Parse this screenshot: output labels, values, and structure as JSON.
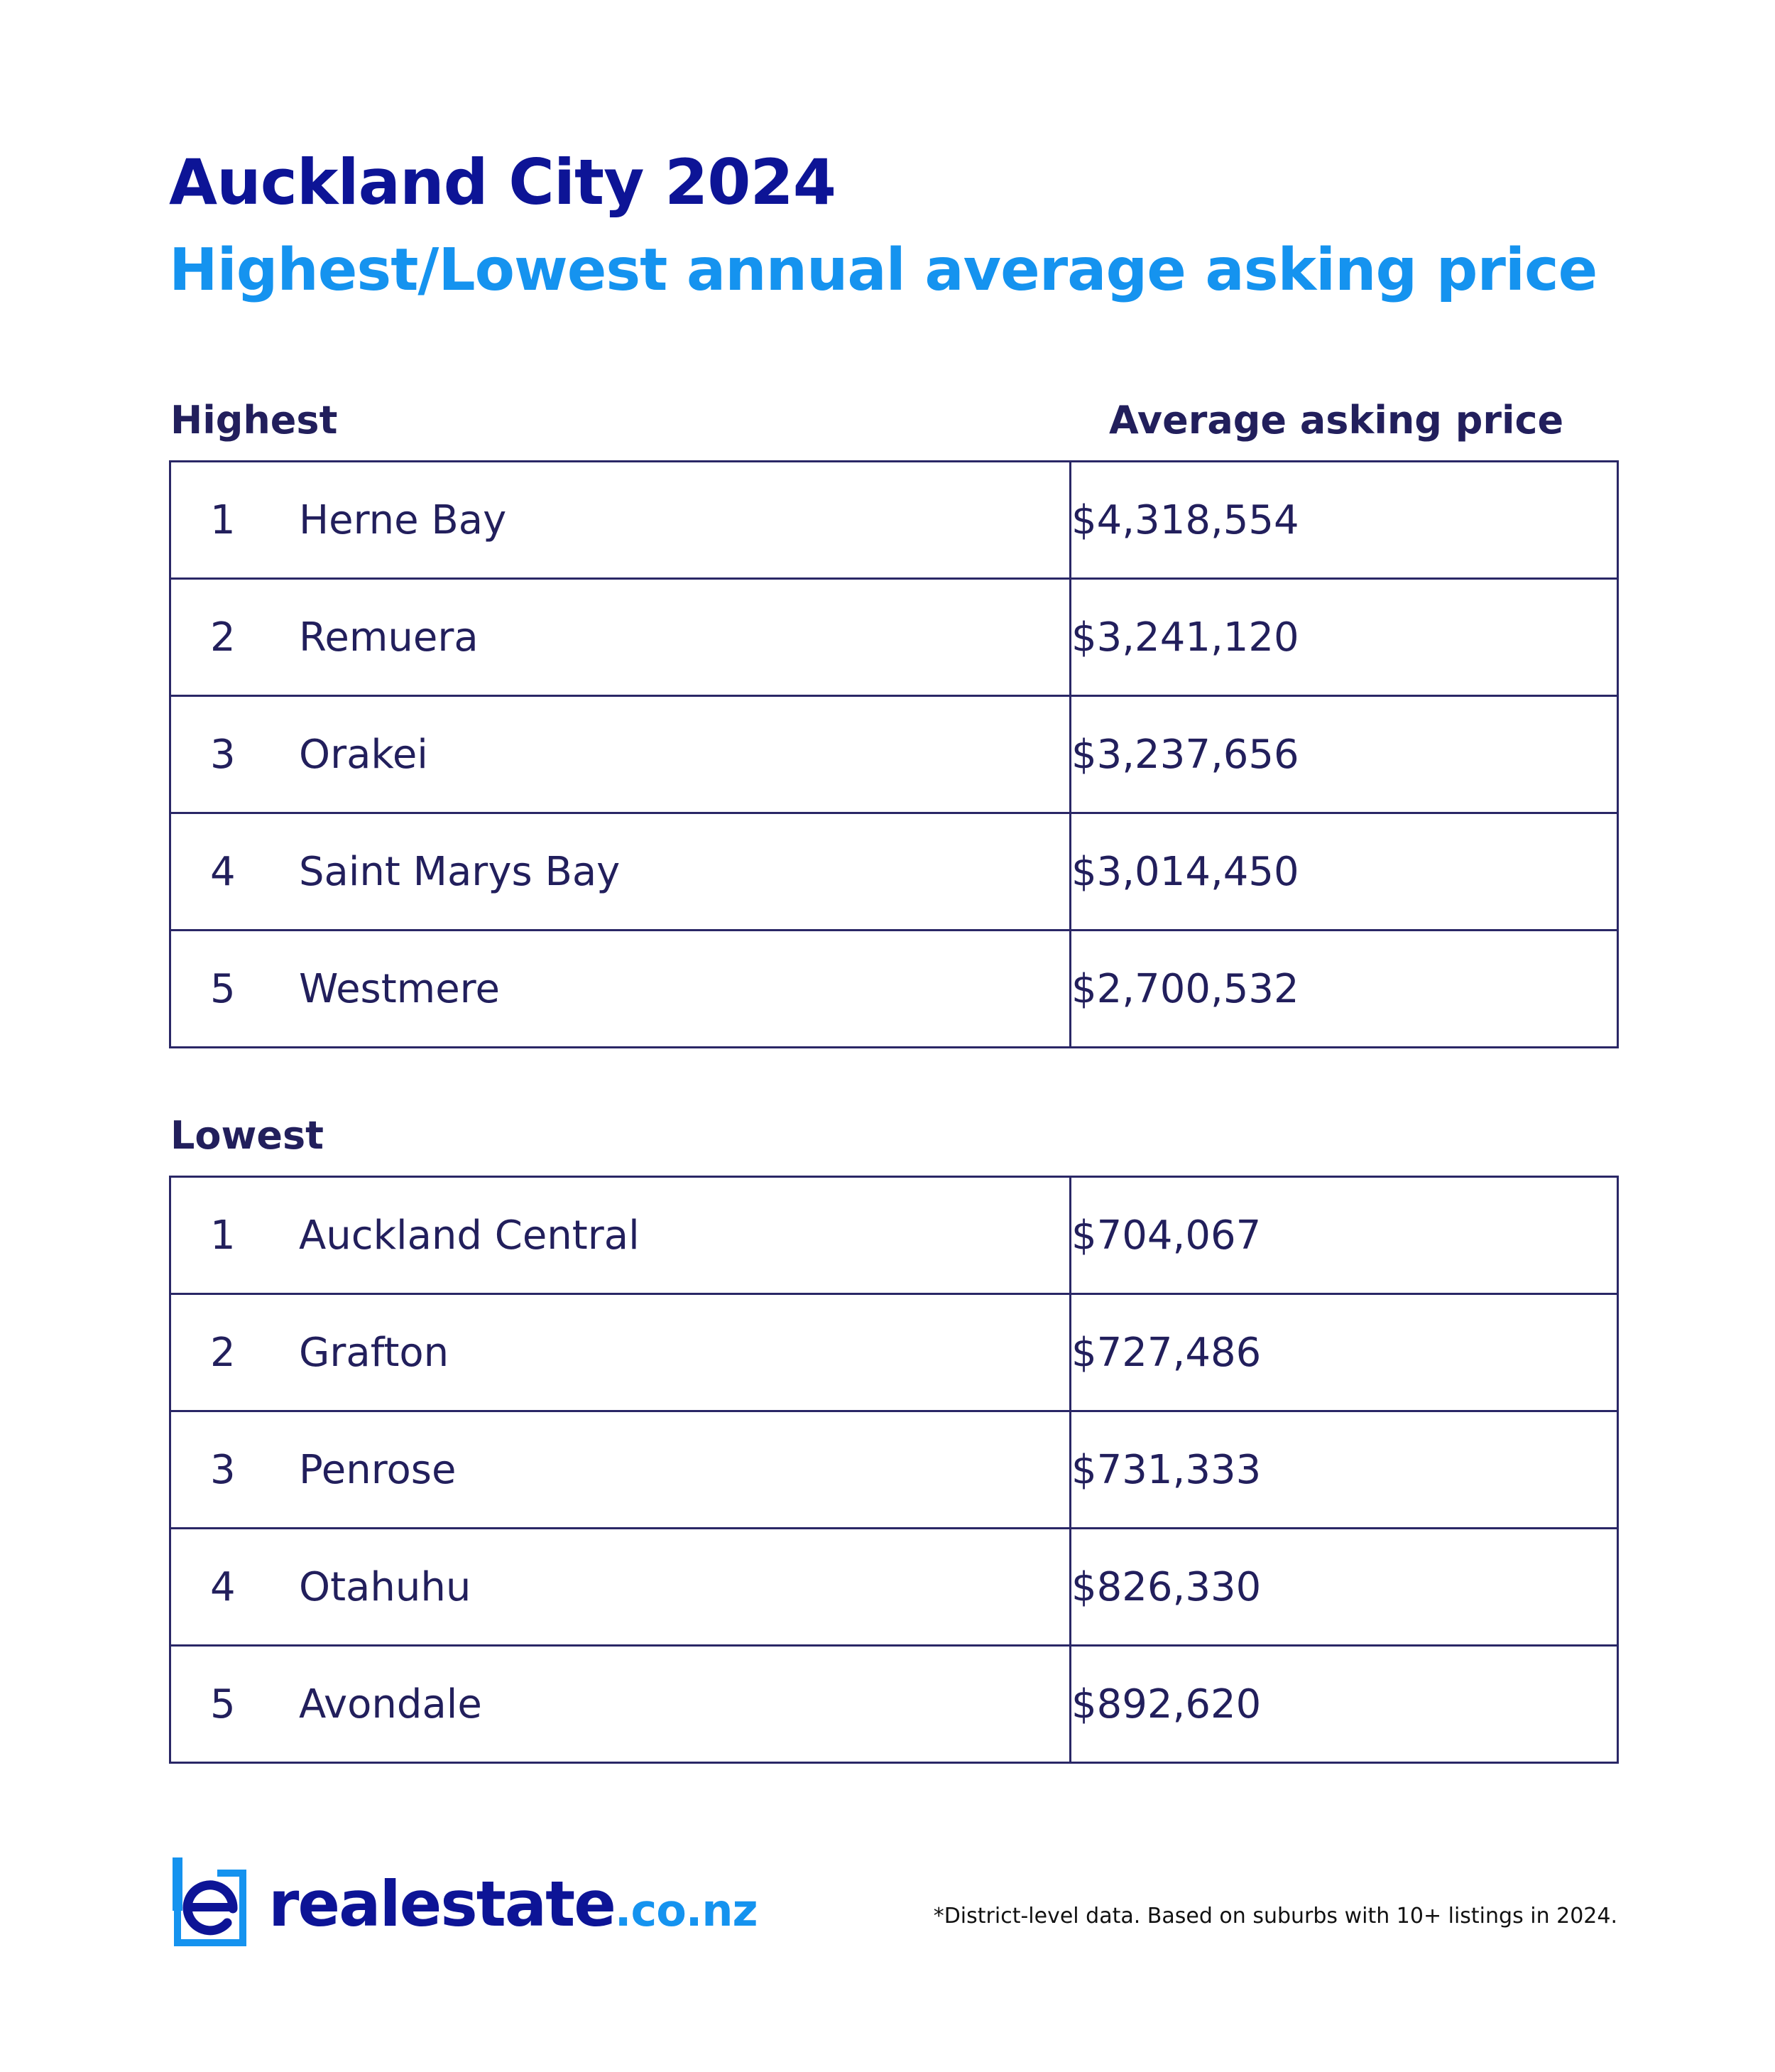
{
  "header": {
    "title": "Auckland City 2024",
    "subtitle": "Highest/Lowest annual average asking price"
  },
  "highest": {
    "label": "Highest",
    "column_label": "Average asking price",
    "rows": [
      {
        "rank": "1",
        "suburb": "Herne Bay",
        "price": "$4,318,554"
      },
      {
        "rank": "2",
        "suburb": "Remuera",
        "price": "$3,241,120"
      },
      {
        "rank": "3",
        "suburb": "Orakei",
        "price": "$3,237,656"
      },
      {
        "rank": "4",
        "suburb": "Saint Marys Bay",
        "price": "$3,014,450"
      },
      {
        "rank": "5",
        "suburb": "Westmere",
        "price": "$2,700,532"
      }
    ]
  },
  "lowest": {
    "label": "Lowest",
    "rows": [
      {
        "rank": "1",
        "suburb": "Auckland Central",
        "price": "$704,067"
      },
      {
        "rank": "2",
        "suburb": "Grafton",
        "price": "$727,486"
      },
      {
        "rank": "3",
        "suburb": "Penrose",
        "price": "$731,333"
      },
      {
        "rank": "4",
        "suburb": "Otahuhu",
        "price": "$826,330"
      },
      {
        "rank": "5",
        "suburb": "Avondale",
        "price": "$892,620"
      }
    ]
  },
  "footer": {
    "logo_name": "realestate",
    "logo_tld": ".co.nz",
    "footnote": "*District-level data. Based on suburbs with 10+ listings in 2024."
  },
  "colors": {
    "title": "#0d1496",
    "subtitle": "#1593ef",
    "text": "#221f5c",
    "border": "#2a2766"
  },
  "chart_data": {
    "type": "table",
    "title": "Auckland City 2024",
    "subtitle": "Highest/Lowest annual average asking price",
    "columns": [
      "",
      "Average asking price"
    ],
    "groups": [
      {
        "name": "Highest",
        "rows": [
          {
            "rank": 1,
            "suburb": "Herne Bay",
            "value": 4318554
          },
          {
            "rank": 2,
            "suburb": "Remuera",
            "value": 3241120
          },
          {
            "rank": 3,
            "suburb": "Orakei",
            "value": 3237656
          },
          {
            "rank": 4,
            "suburb": "Saint Marys Bay",
            "value": 3014450
          },
          {
            "rank": 5,
            "suburb": "Westmere",
            "value": 2700532
          }
        ]
      },
      {
        "name": "Lowest",
        "rows": [
          {
            "rank": 1,
            "suburb": "Auckland Central",
            "value": 704067
          },
          {
            "rank": 2,
            "suburb": "Grafton",
            "value": 727486
          },
          {
            "rank": 3,
            "suburb": "Penrose",
            "value": 731333
          },
          {
            "rank": 4,
            "suburb": "Otahuhu",
            "value": 826330
          },
          {
            "rank": 5,
            "suburb": "Avondale",
            "value": 892620
          }
        ]
      }
    ]
  }
}
